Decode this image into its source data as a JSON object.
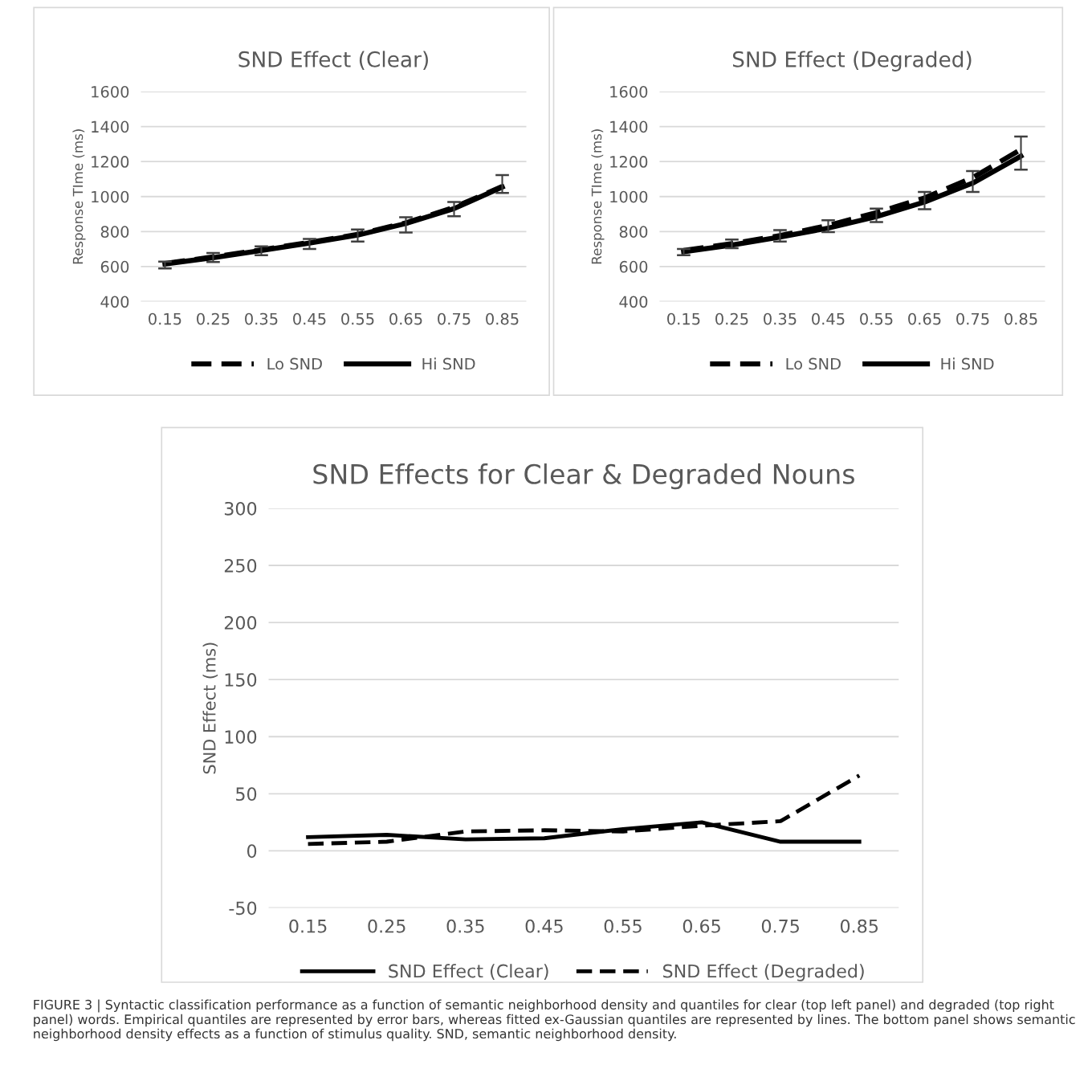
{
  "chart_data": [
    {
      "type": "line",
      "title": "SND Effect (Clear)",
      "ylabel": "Response TIme (ms)",
      "categories": [
        "0.15",
        "0.25",
        "0.35",
        "0.45",
        "0.55",
        "0.65",
        "0.75",
        "0.85"
      ],
      "ylim": [
        400,
        1600
      ],
      "yticks": [
        400,
        600,
        800,
        1000,
        1200,
        1400,
        1600
      ],
      "grid": "y",
      "legend": "bottom",
      "series": [
        {
          "name": "Lo SND",
          "color": "#000000",
          "line_style": "dashed",
          "values": [
            618,
            655,
            696,
            738,
            784,
            850,
            938,
            1058
          ]
        },
        {
          "name": "Hi SND",
          "color": "#000000",
          "line_style": "solid",
          "values": [
            615,
            651,
            692,
            734,
            780,
            846,
            931,
            1054
          ],
          "errors": [
            [
              589,
              628
            ],
            [
              626,
              677
            ],
            [
              665,
              715
            ],
            [
              700,
              758
            ],
            [
              743,
              812
            ],
            [
              795,
              882
            ],
            [
              887,
              969
            ],
            [
              1020,
              1123
            ]
          ]
        }
      ]
    },
    {
      "type": "line",
      "title": "SND Effect (Degraded)",
      "ylabel": "Response TIme (ms)",
      "categories": [
        "0.15",
        "0.25",
        "0.35",
        "0.45",
        "0.55",
        "0.65",
        "0.75",
        "0.85"
      ],
      "ylim": [
        400,
        1600
      ],
      "yticks": [
        400,
        600,
        800,
        1000,
        1200,
        1400,
        1600
      ],
      "grid": "y",
      "legend": "bottom",
      "series": [
        {
          "name": "Lo SND",
          "color": "#000000",
          "line_style": "dashed",
          "values": [
            692,
            731,
            777,
            835,
            908,
            992,
            1108,
            1269
          ]
        },
        {
          "name": "Hi SND",
          "color": "#000000",
          "line_style": "solid",
          "values": [
            685,
            723,
            769,
            820,
            885,
            969,
            1077,
            1231
          ],
          "errors": [
            [
              665,
              700
            ],
            [
              705,
              754
            ],
            [
              743,
              808
            ],
            [
              797,
              865
            ],
            [
              854,
              931
            ],
            [
              928,
              1026
            ],
            [
              1026,
              1146
            ],
            [
              1154,
              1343
            ]
          ]
        }
      ]
    },
    {
      "type": "line",
      "title": "SND Effects for Clear & Degraded Nouns",
      "ylabel": "SND Effect (ms)",
      "categories": [
        "0.15",
        "0.25",
        "0.35",
        "0.45",
        "0.55",
        "0.65",
        "0.75",
        "0.85"
      ],
      "ylim": [
        -50,
        300
      ],
      "yticks": [
        -50,
        0,
        50,
        100,
        150,
        200,
        250,
        300
      ],
      "grid": "y",
      "legend": "bottom",
      "series": [
        {
          "name": "SND Effect (Clear)",
          "color": "#000000",
          "line_style": "solid",
          "values": [
            12,
            14,
            10,
            11,
            19,
            25,
            8,
            8
          ]
        },
        {
          "name": "SND Effect (Degraded)",
          "color": "#000000",
          "line_style": "dashed",
          "values": [
            6,
            8,
            17,
            18,
            17,
            22,
            26,
            66
          ]
        }
      ],
      "annotations": [
        "FIGURE 3 | Syntactic classification performance as a function of semantic neighborhood density and quantiles for clear (top left panel) and degraded (top right panel) words. Empirical quantiles are represented by error bars, whereas fitted ex-Gaussian quantiles are represented by lines. The bottom panel shows semantic neighborhood density effects as a function of stimulus quality. SND, semantic neighborhood density."
      ]
    }
  ]
}
